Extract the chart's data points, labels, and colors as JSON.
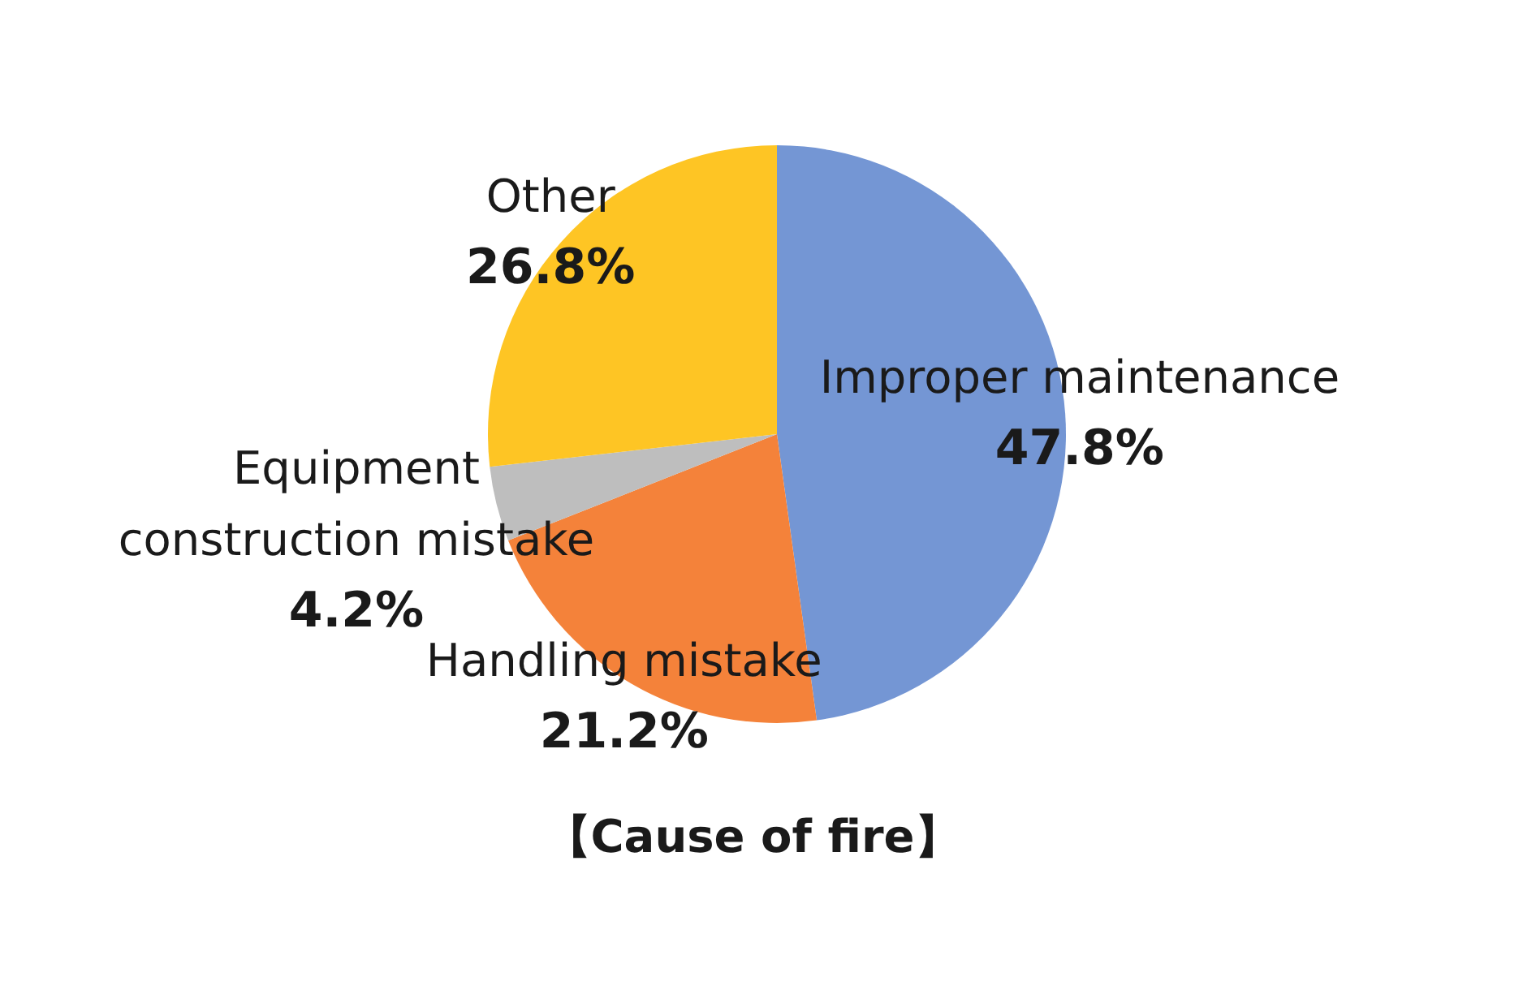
{
  "chart_data": {
    "type": "pie",
    "title": "【Cause of fire】",
    "categories": [
      "Improper maintenance",
      "Handling mistake",
      "Equipment construction mistake",
      "Other"
    ],
    "values": [
      47.8,
      21.2,
      4.2,
      26.8
    ],
    "value_labels": [
      "47.8%",
      "21.2%",
      "4.2%",
      "26.8%"
    ],
    "colors": [
      "#7496d4",
      "#f4823a",
      "#bebebe",
      "#fec524"
    ]
  }
}
